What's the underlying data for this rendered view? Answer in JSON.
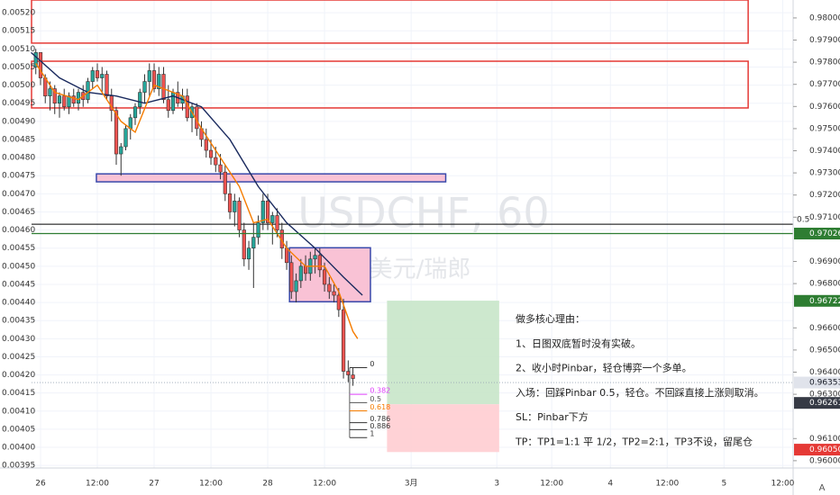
{
  "chart_data": {
    "type": "candlestick",
    "watermark": "USDCHF, 60",
    "watermark_sub": "美元/瑞郎",
    "xlim": [
      -1.9,
      159
    ],
    "xticks": [
      {
        "value": 0,
        "label": "26"
      },
      {
        "value": 12,
        "label": "12:00"
      },
      {
        "value": 24,
        "label": "27"
      },
      {
        "value": 36,
        "label": "12:00"
      },
      {
        "value": 48,
        "label": "28"
      },
      {
        "value": 60,
        "label": "12:00"
      },
      {
        "value": 78.3,
        "label": "3月"
      },
      {
        "value": 96.4,
        "label": "3"
      },
      {
        "value": 108,
        "label": "12:00"
      },
      {
        "value": 120.4,
        "label": "4"
      },
      {
        "value": 132.4,
        "label": "12:00"
      },
      {
        "value": 144.4,
        "label": "5"
      },
      {
        "value": 156.8,
        "label": "12:00"
      }
    ],
    "ylim": [
      0.003943,
      0.005235
    ],
    "yticks": [
      {
        "value": 0.0052,
        "label": "0.00520"
      },
      {
        "value": 0.00515,
        "label": "0.00515"
      },
      {
        "value": 0.0051,
        "label": "0.00510"
      },
      {
        "value": 0.00505,
        "label": "0.00505"
      },
      {
        "value": 0.005,
        "label": "0.00500"
      },
      {
        "value": 0.00495,
        "label": "0.00495"
      },
      {
        "value": 0.0049,
        "label": "0.00490"
      },
      {
        "value": 0.00485,
        "label": "0.00485"
      },
      {
        "value": 0.0048,
        "label": "0.00480"
      },
      {
        "value": 0.00475,
        "label": "0.00475"
      },
      {
        "value": 0.0047,
        "label": "0.00470"
      },
      {
        "value": 0.00465,
        "label": "0.00465"
      },
      {
        "value": 0.0046,
        "label": "0.00460"
      },
      {
        "value": 0.00455,
        "label": "0.00455"
      },
      {
        "value": 0.0045,
        "label": "0.00450"
      },
      {
        "value": 0.00445,
        "label": "0.00445"
      },
      {
        "value": 0.0044,
        "label": "0.00440"
      },
      {
        "value": 0.00435,
        "label": "0.00435"
      },
      {
        "value": 0.0043,
        "label": "0.00430"
      },
      {
        "value": 0.00425,
        "label": "0.00425"
      },
      {
        "value": 0.0042,
        "label": "0.00420"
      },
      {
        "value": 0.00415,
        "label": "0.00415"
      },
      {
        "value": 0.0041,
        "label": "0.00410"
      },
      {
        "value": 0.00405,
        "label": "0.00405"
      },
      {
        "value": 0.004,
        "label": "0.00400"
      },
      {
        "value": 0.00395,
        "label": "0.00395"
      }
    ],
    "y2lim": [
      0.95967,
      0.98081
    ],
    "y2ticks": [
      {
        "value": 0.98,
        "label": "0.98000"
      },
      {
        "value": 0.979,
        "label": "0.97900"
      },
      {
        "value": 0.978,
        "label": "0.97800"
      },
      {
        "value": 0.977,
        "label": "0.97700"
      },
      {
        "value": 0.976,
        "label": "0.97600"
      },
      {
        "value": 0.975,
        "label": "0.97500"
      },
      {
        "value": 0.974,
        "label": "0.97400"
      },
      {
        "value": 0.973,
        "label": "0.97300"
      },
      {
        "value": 0.972,
        "label": "0.97200"
      },
      {
        "value": 0.971,
        "label": "0.97100"
      },
      {
        "value": 0.969,
        "label": "0.96900"
      },
      {
        "value": 0.968,
        "label": "0.96800"
      },
      {
        "value": 0.966,
        "label": "0.96600"
      },
      {
        "value": 0.965,
        "label": "0.96500"
      },
      {
        "value": 0.964,
        "label": "0.96400"
      },
      {
        "value": 0.963,
        "label": "0.96300"
      },
      {
        "value": 0.961,
        "label": "0.96100"
      },
      {
        "value": 0.96,
        "label": "0.96000"
      }
    ],
    "grid": true,
    "up_color": "#26a69a",
    "down_color": "#ef5350",
    "candles": {
      "x": [
        -1,
        0,
        1,
        2,
        3,
        4,
        5,
        6,
        7,
        8,
        9,
        10,
        11,
        12,
        13,
        14,
        15,
        16,
        17,
        18,
        19,
        20,
        21,
        22,
        23,
        24,
        25,
        26,
        27,
        28,
        29,
        30,
        31,
        32,
        33,
        34,
        35,
        36,
        37,
        38,
        39,
        40,
        41,
        42,
        43,
        44,
        45,
        46,
        47,
        48,
        49,
        50,
        51,
        52,
        53,
        54,
        55,
        56,
        57,
        58,
        59,
        60,
        61,
        62,
        63,
        64,
        65,
        66
      ],
      "open": [
        0.00505,
        0.00509,
        0.00502,
        0.00497,
        0.00499,
        0.00495,
        0.00497,
        0.00494,
        0.00497,
        0.00495,
        0.00498,
        0.00496,
        0.00501,
        0.00504,
        0.00502,
        0.00503,
        0.00497,
        0.00493,
        0.00481,
        0.00483,
        0.00488,
        0.00491,
        0.00494,
        0.00498,
        0.00501,
        0.00504,
        0.00499,
        0.00503,
        0.00496,
        0.00493,
        0.00498,
        0.00495,
        0.00497,
        0.00491,
        0.00494,
        0.00488,
        0.00485,
        0.00482,
        0.0048,
        0.00478,
        0.00476,
        0.0047,
        0.00465,
        0.00468,
        0.0046,
        0.00452,
        0.00455,
        0.00458,
        0.00462,
        0.00468,
        0.00462,
        0.00464,
        0.0046,
        0.00455,
        0.00451,
        0.00443,
        0.00446,
        0.0045,
        0.00448,
        0.00452,
        0.00453,
        0.00449,
        0.00445,
        0.00443,
        0.00442,
        0.00438,
        0.00421,
        0.0042
      ],
      "high": [
        0.0051,
        0.00509,
        0.00503,
        0.00501,
        0.005,
        0.00498,
        0.00499,
        0.00498,
        0.00499,
        0.00499,
        0.005,
        0.00502,
        0.00505,
        0.00506,
        0.00505,
        0.00504,
        0.00499,
        0.00494,
        0.00484,
        0.00489,
        0.00492,
        0.00495,
        0.00499,
        0.00503,
        0.00506,
        0.00506,
        0.00505,
        0.00505,
        0.005,
        0.00499,
        0.00501,
        0.00499,
        0.00499,
        0.00495,
        0.00495,
        0.0049,
        0.00488,
        0.00485,
        0.00483,
        0.00481,
        0.00478,
        0.00473,
        0.0047,
        0.00469,
        0.00462,
        0.00457,
        0.00462,
        0.00464,
        0.0047,
        0.0047,
        0.00465,
        0.00466,
        0.00462,
        0.00457,
        0.00453,
        0.00448,
        0.00452,
        0.00453,
        0.00454,
        0.00455,
        0.00455,
        0.00451,
        0.00447,
        0.00445,
        0.00444,
        0.00441,
        0.00424,
        0.00422
      ],
      "low": [
        0.00503,
        0.005,
        0.00495,
        0.00493,
        0.00492,
        0.00491,
        0.00493,
        0.00492,
        0.00494,
        0.00493,
        0.00494,
        0.00495,
        0.00499,
        0.00501,
        0.00498,
        0.00496,
        0.0049,
        0.00478,
        0.00475,
        0.00482,
        0.00485,
        0.00489,
        0.00492,
        0.00495,
        0.00497,
        0.00498,
        0.00497,
        0.00495,
        0.00491,
        0.00492,
        0.00494,
        0.00493,
        0.0049,
        0.00487,
        0.00486,
        0.00483,
        0.0048,
        0.00478,
        0.00476,
        0.00474,
        0.00468,
        0.00463,
        0.00461,
        0.00458,
        0.0045,
        0.00449,
        0.00444,
        0.00456,
        0.0046,
        0.0046,
        0.00456,
        0.00458,
        0.00452,
        0.00449,
        0.00441,
        0.0044,
        0.00444,
        0.00446,
        0.00446,
        0.00448,
        0.00447,
        0.00443,
        0.00441,
        0.0044,
        0.00436,
        0.00419,
        0.00418,
        0.00417
      ],
      "close": [
        0.00509,
        0.00502,
        0.00497,
        0.00499,
        0.00495,
        0.00497,
        0.00494,
        0.00497,
        0.00495,
        0.00498,
        0.00496,
        0.00501,
        0.00504,
        0.00502,
        0.00503,
        0.00497,
        0.00493,
        0.00481,
        0.00483,
        0.00488,
        0.00491,
        0.00494,
        0.00498,
        0.00501,
        0.00504,
        0.00499,
        0.00503,
        0.00496,
        0.00493,
        0.00498,
        0.00495,
        0.00497,
        0.00491,
        0.00494,
        0.00488,
        0.00485,
        0.00482,
        0.0048,
        0.00478,
        0.00476,
        0.0047,
        0.00465,
        0.00468,
        0.0046,
        0.00452,
        0.00455,
        0.00458,
        0.00462,
        0.00468,
        0.00462,
        0.00464,
        0.0046,
        0.00455,
        0.00451,
        0.00443,
        0.00446,
        0.0045,
        0.00448,
        0.00452,
        0.00453,
        0.00449,
        0.00445,
        0.00443,
        0.00442,
        0.00438,
        0.00421,
        0.0042,
        0.00419
      ]
    },
    "lines": [
      {
        "color": "#1a2a5e",
        "x": [
          -2,
          4,
          10,
          16,
          22,
          28,
          34,
          40,
          46,
          52,
          58,
          64,
          68
        ],
        "values": [
          0.00509,
          0.00502,
          0.00498,
          0.00497,
          0.00495,
          0.00497,
          0.00494,
          0.00485,
          0.00472,
          0.00462,
          0.00455,
          0.00447,
          0.00442
        ]
      },
      {
        "color": "#f57c00",
        "x": [
          -1,
          3,
          8,
          12,
          17,
          20,
          24,
          30,
          34,
          38,
          42,
          45,
          48,
          52,
          56,
          60,
          63,
          66,
          67
        ],
        "values": [
          0.00506,
          0.00498,
          0.00496,
          0.005,
          0.0049,
          0.00487,
          0.005,
          0.00497,
          0.00488,
          0.0048,
          0.00472,
          0.00462,
          0.00463,
          0.00455,
          0.0045,
          0.0045,
          0.00443,
          0.00432,
          0.0043
        ]
      }
    ],
    "zones": [
      {
        "x0": -1.9,
        "x1": 149.5,
        "y0": 0.005116,
        "y1": 0.005235,
        "fill": "none",
        "stroke": "#e53935"
      },
      {
        "x0": -1.9,
        "x1": 149.5,
        "y0": 0.004937,
        "y1": 0.005066,
        "fill": "none",
        "stroke": "#e53935"
      },
      {
        "x0": 11.8,
        "x1": 85.6,
        "y0": 0.004733,
        "y1": 0.004755,
        "fill": "#f8bbd0",
        "stroke": "#3949ab"
      },
      {
        "x0": 52.6,
        "x1": 69.7,
        "y0": 0.004402,
        "y1": 0.004551,
        "fill": "#f8bbd0",
        "stroke": "#3949ab"
      },
      {
        "x0": 73.2,
        "x1": 96.9,
        "y0": 0.004119,
        "y1": 0.004405,
        "fill": "#c8e6c9",
        "stroke": "none"
      },
      {
        "x0": 73.2,
        "x1": 96.9,
        "y0": 0.003987,
        "y1": 0.004119,
        "fill": "#ffcdd2",
        "stroke": "none"
      }
    ],
    "hline": {
      "price": 0.004616,
      "label": 0.5,
      "color": "#000000"
    },
    "fib": {
      "x0": 65.3,
      "x1": 69,
      "price_0": 0.00422,
      "price_1": 0.004027,
      "levels": [
        0,
        0.382,
        0.5,
        0.618,
        0.786,
        0.886,
        1
      ],
      "colors": [
        "#333333",
        "#e040fb",
        "#555555",
        "#f57c00",
        "#333333",
        "#333333",
        "#333333"
      ]
    },
    "price_labels": [
      {
        "value": 0.97026,
        "label": "0.97026",
        "color": "#2e7d32",
        "text_color": "#ffffff",
        "line": "solid"
      },
      {
        "value": 0.96722,
        "label": "0.96722",
        "color": "#2e7d32",
        "text_color": "#ffffff",
        "line": "none"
      },
      {
        "value": 0.96353,
        "label": "0.96353",
        "color": "#e0e3eb",
        "text_color": "#131722",
        "line": "dotted"
      },
      {
        "value": 0.96261,
        "label": "0.96261",
        "color": "#363a45",
        "text_color": "#ffffff",
        "line": "none"
      },
      {
        "value": 0.9605,
        "label": "0.96050",
        "color": "#e53935",
        "text_color": "#ffffff",
        "line": "none"
      }
    ],
    "annotation": [
      "做多核心理由：",
      "1、日图双底暂时没有实破。",
      "2、收小时Pinbar，轻仓博弈一个多单。",
      "入场：回踩Pinbar 0.5，轻仓。不回踩直接上涨则取消。",
      "SL：Pinbar下方",
      "TP：TP1=1:1 平 1/2，TP2=2:1，TP3不设，留尾仓"
    ],
    "corner_button": "A"
  }
}
